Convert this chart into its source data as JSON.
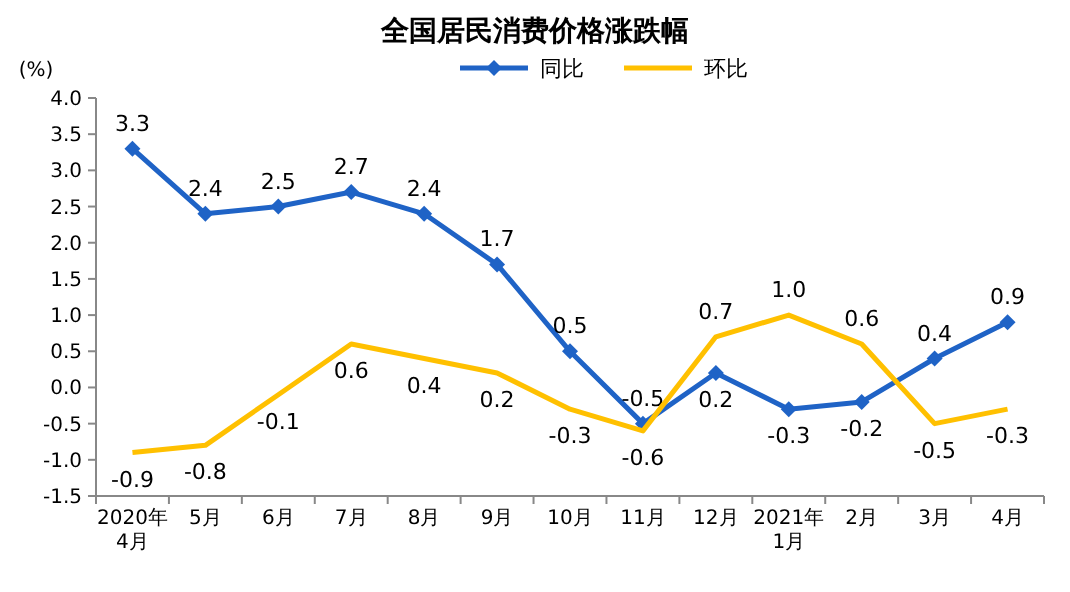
{
  "chart_data": {
    "type": "line",
    "title": "全国居民消费价格涨跌幅",
    "ylabel": "(%)",
    "categories": [
      "2020年\n4月",
      "5月",
      "6月",
      "7月",
      "8月",
      "9月",
      "10月",
      "11月",
      "12月",
      "2021年\n1月",
      "2月",
      "3月",
      "4月"
    ],
    "series": [
      {
        "name": "同比",
        "color": "#1f63c6",
        "marker": "diamond",
        "values": [
          3.3,
          2.4,
          2.5,
          2.7,
          2.4,
          1.7,
          0.5,
          -0.5,
          0.2,
          -0.3,
          -0.2,
          0.4,
          0.9
        ],
        "value_labels": [
          "3.3",
          "2.4",
          "2.5",
          "2.7",
          "2.4",
          "1.7",
          "0.5",
          "-0.5",
          "0.2",
          "-0.3",
          "-0.2",
          "0.4",
          "0.9"
        ]
      },
      {
        "name": "环比",
        "color": "#ffc000",
        "marker": "none",
        "values": [
          -0.9,
          -0.8,
          -0.1,
          0.6,
          0.4,
          0.2,
          -0.3,
          -0.6,
          0.7,
          1.0,
          0.6,
          -0.5,
          -0.3
        ],
        "value_labels": [
          "-0.9",
          "-0.8",
          "-0.1",
          "0.6",
          "0.4",
          "0.2",
          "-0.3",
          "-0.6",
          "0.7",
          "1.0",
          "0.6",
          "-0.5",
          "-0.3"
        ]
      }
    ],
    "ylim": [
      -1.5,
      4.0
    ],
    "yticks": [
      {
        "value": -1.5,
        "label": "-1.5"
      },
      {
        "value": -1,
        "label": "-1.0"
      },
      {
        "value": -0.5,
        "label": "-0.5"
      },
      {
        "value": 0,
        "label": "0.0"
      },
      {
        "value": 0.5,
        "label": "0.5"
      },
      {
        "value": 1,
        "label": "1.0"
      },
      {
        "value": 1.5,
        "label": "1.5"
      },
      {
        "value": 2,
        "label": "2.0"
      },
      {
        "value": 2.5,
        "label": "2.5"
      },
      {
        "value": 3,
        "label": "3.0"
      },
      {
        "value": 3.5,
        "label": "3.5"
      },
      {
        "value": 4,
        "label": "4.0"
      }
    ],
    "grid": false,
    "legend": "top",
    "line_style": "solid"
  }
}
